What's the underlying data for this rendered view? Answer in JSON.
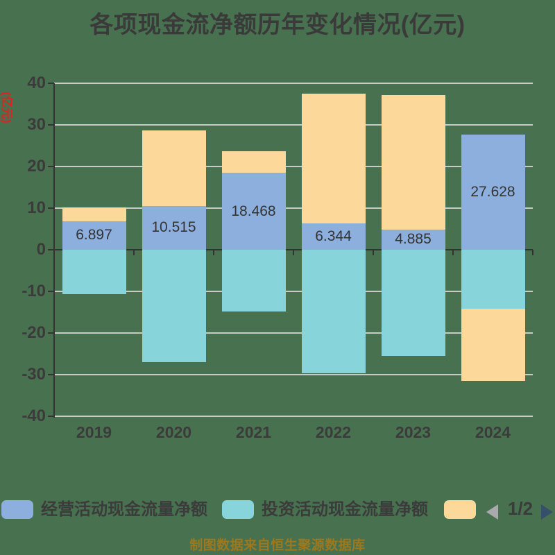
{
  "title": "各项现金流净额历年变化情况(亿元)",
  "y_axis_name": "(亿元)",
  "source_note": "制图数据来自恒生聚源数据库",
  "legend": {
    "items": [
      {
        "label": "经营活动现金流量净额",
        "color": "#8dafdd"
      },
      {
        "label": "投资活动现金流量净额",
        "color": "#87d5da"
      },
      {
        "label": "",
        "color": "#fdd89b"
      }
    ],
    "pagination": {
      "text": "1/2",
      "prev_color": "#a8aaad",
      "next_color": "#37506a"
    }
  },
  "chart_data": {
    "type": "bar",
    "stacked": true,
    "title": "各项现金流净额历年变化情况(亿元)",
    "categories": [
      "2019",
      "2020",
      "2021",
      "2022",
      "2023",
      "2024"
    ],
    "series": [
      {
        "name": "经营活动现金流量净额",
        "color": "#8dafdd",
        "values": [
          6.897,
          10.515,
          18.468,
          6.344,
          4.885,
          27.628
        ]
      },
      {
        "name": "投资活动现金流量净额",
        "color": "#87d5da",
        "values": [
          -10.7,
          -27.0,
          -14.8,
          -29.6,
          -25.5,
          -14.2
        ]
      },
      {
        "name": "",
        "label_visible": false,
        "color": "#fdd89b",
        "values": [
          3.3,
          18.2,
          5.2,
          31.2,
          32.3,
          -17.3
        ]
      }
    ],
    "bar_labels": [
      "6.897",
      "10.515",
      "18.468",
      "6.344",
      "4.885",
      "27.628"
    ],
    "xlabel": "",
    "ylabel": "(亿元)",
    "ylim": [
      -40,
      40
    ],
    "ytick_step": 10,
    "grid": true,
    "legend_position": "bottom"
  },
  "colors": {
    "background": "#48714f",
    "text": "#3b3b3b",
    "grid": "#c9cbc6",
    "axis": "#333333",
    "bar_label": "#333333",
    "y_axis_name": "#e02222",
    "source_note": "#9c781e"
  }
}
